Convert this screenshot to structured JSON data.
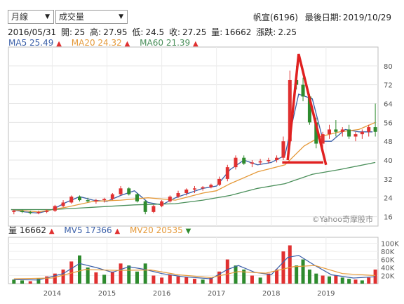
{
  "controls": {
    "period_select": "月線",
    "indicator_select": "成交量"
  },
  "header": {
    "stock": "帆宣(6196)",
    "last_date_label": "最後日期:",
    "last_date": "2019/10/29"
  },
  "ohlc": {
    "date": "2016/05/31",
    "open_label": "開:",
    "open": "25",
    "high_label": "高:",
    "high": "27.95",
    "low_label": "低:",
    "low": "24.5",
    "close_label": "收:",
    "close": "27.25",
    "volume_label": "量:",
    "volume": "16662",
    "change_label": "漲跌:",
    "change": "2.25"
  },
  "ma_legend": [
    {
      "label": "MA5",
      "value": "25.49",
      "color": "#3a5fa8",
      "trend": "up"
    },
    {
      "label": "MA20",
      "value": "24.32",
      "color": "#e59a3a",
      "trend": "up"
    },
    {
      "label": "MA60",
      "value": "21.39",
      "color": "#4a8f5a",
      "trend": "up"
    }
  ],
  "vol_legend": [
    {
      "label": "量",
      "value": "16662",
      "color": "#222222",
      "trend": "up"
    },
    {
      "label": "MV5",
      "value": "17366",
      "color": "#3a5fa8",
      "trend": "up"
    },
    {
      "label": "MV20",
      "value": "20535",
      "color": "#e59a3a",
      "trend": "down"
    }
  ],
  "watermark": "©Yahoo奇摩股市",
  "colors": {
    "up": "#e03030",
    "down": "#2e8b2e",
    "annotation": "#e02020"
  },
  "chart_data": [
    {
      "type": "candlestick",
      "title": "",
      "ylim": [
        12,
        88
      ],
      "y_ticks": [
        16,
        24,
        32,
        40,
        48,
        56,
        64,
        72,
        80
      ],
      "x_ticks": [
        "2014",
        "2015",
        "2016",
        "2017",
        "2018",
        "2019"
      ],
      "x_domain": [
        2013.2,
        2019.95
      ],
      "series": [
        {
          "name": "MA5",
          "color": "#3a5fa8",
          "points": [
            [
              2013.25,
              19
            ],
            [
              2013.5,
              18
            ],
            [
              2013.75,
              17.5
            ],
            [
              2014.0,
              19
            ],
            [
              2014.25,
              22
            ],
            [
              2014.5,
              24.5
            ],
            [
              2014.75,
              23
            ],
            [
              2015.0,
              22.5
            ],
            [
              2015.25,
              25
            ],
            [
              2015.5,
              27
            ],
            [
              2015.75,
              22
            ],
            [
              2016.0,
              21
            ],
            [
              2016.25,
              24
            ],
            [
              2016.5,
              26
            ],
            [
              2016.75,
              28
            ],
            [
              2017.0,
              29
            ],
            [
              2017.25,
              36
            ],
            [
              2017.5,
              40
            ],
            [
              2017.75,
              38
            ],
            [
              2018.0,
              39
            ],
            [
              2018.25,
              42
            ],
            [
              2018.5,
              68
            ],
            [
              2018.75,
              66
            ],
            [
              2018.95,
              48
            ],
            [
              2019.1,
              48
            ],
            [
              2019.35,
              53
            ],
            [
              2019.6,
              52
            ],
            [
              2019.85,
              52
            ]
          ]
        },
        {
          "name": "MA20",
          "color": "#e59a3a",
          "points": [
            [
              2013.25,
              19
            ],
            [
              2013.75,
              18
            ],
            [
              2014.25,
              20
            ],
            [
              2014.75,
              22.5
            ],
            [
              2015.25,
              23
            ],
            [
              2015.75,
              24
            ],
            [
              2016.25,
              23
            ],
            [
              2016.75,
              26
            ],
            [
              2017.0,
              27
            ],
            [
              2017.25,
              30
            ],
            [
              2017.75,
              35
            ],
            [
              2018.25,
              38
            ],
            [
              2018.6,
              46
            ],
            [
              2018.9,
              50
            ],
            [
              2019.25,
              52
            ],
            [
              2019.6,
              53
            ],
            [
              2019.9,
              56
            ]
          ]
        },
        {
          "name": "MA60",
          "color": "#4a8f5a",
          "points": [
            [
              2013.25,
              19
            ],
            [
              2014.0,
              19
            ],
            [
              2014.75,
              20
            ],
            [
              2015.5,
              21
            ],
            [
              2016.25,
              21.5
            ],
            [
              2016.75,
              23
            ],
            [
              2017.25,
              25
            ],
            [
              2017.75,
              28
            ],
            [
              2018.25,
              30
            ],
            [
              2018.75,
              34
            ],
            [
              2019.25,
              36
            ],
            [
              2019.9,
              39
            ]
          ]
        }
      ],
      "candles": [
        [
          2013.3,
          18,
          19,
          17,
          18.5
        ],
        [
          2013.45,
          18.5,
          19,
          17.5,
          18
        ],
        [
          2013.6,
          18,
          18.5,
          17,
          17.5
        ],
        [
          2013.75,
          17.5,
          18.5,
          17,
          18
        ],
        [
          2013.9,
          18,
          19,
          17.5,
          18.5
        ],
        [
          2014.05,
          18.5,
          21,
          18,
          20.5
        ],
        [
          2014.2,
          20.5,
          23,
          20,
          22
        ],
        [
          2014.35,
          22,
          25,
          21.5,
          24.5
        ],
        [
          2014.5,
          24.5,
          25,
          22.5,
          23
        ],
        [
          2014.65,
          23,
          24,
          22,
          22.5
        ],
        [
          2014.8,
          22.5,
          23.5,
          21.5,
          23
        ],
        [
          2014.95,
          23,
          24,
          22,
          23.5
        ],
        [
          2015.1,
          23.5,
          26,
          23,
          25.5
        ],
        [
          2015.25,
          25.5,
          29,
          25,
          28
        ],
        [
          2015.4,
          28,
          28.5,
          25,
          25.5
        ],
        [
          2015.55,
          25.5,
          26,
          22,
          22.5
        ],
        [
          2015.7,
          22.5,
          23,
          17,
          18
        ],
        [
          2015.85,
          18,
          21,
          17.5,
          20.5
        ],
        [
          2016.0,
          20.5,
          23,
          20,
          22.5
        ],
        [
          2016.15,
          22.5,
          25,
          22,
          24.5
        ],
        [
          2016.3,
          24.5,
          27,
          24,
          26
        ],
        [
          2016.45,
          26,
          28,
          25,
          27.5
        ],
        [
          2016.6,
          27.5,
          29,
          26,
          28
        ],
        [
          2016.75,
          28,
          29,
          27,
          28.5
        ],
        [
          2016.9,
          28.5,
          30,
          28,
          29.5
        ],
        [
          2017.05,
          29.5,
          33,
          29,
          32
        ],
        [
          2017.2,
          32,
          38,
          31,
          37
        ],
        [
          2017.35,
          37,
          42,
          36,
          41
        ],
        [
          2017.5,
          41,
          42,
          38,
          38.5
        ],
        [
          2017.65,
          38.5,
          40,
          37,
          39
        ],
        [
          2017.8,
          39,
          40.5,
          38,
          39.5
        ],
        [
          2017.95,
          39.5,
          41,
          38.5,
          40
        ],
        [
          2018.1,
          40,
          42,
          39,
          41
        ],
        [
          2018.22,
          41,
          50,
          40,
          48
        ],
        [
          2018.34,
          48,
          78,
          47,
          74
        ],
        [
          2018.46,
          74,
          80,
          70,
          72
        ],
        [
          2018.58,
          72,
          75,
          65,
          67
        ],
        [
          2018.7,
          67,
          68,
          55,
          56
        ],
        [
          2018.82,
          56,
          58,
          45,
          47
        ],
        [
          2018.94,
          47,
          52,
          44,
          51
        ],
        [
          2019.06,
          51,
          55,
          49,
          53
        ],
        [
          2019.18,
          53,
          57,
          50,
          52
        ],
        [
          2019.3,
          52,
          54,
          50,
          53
        ],
        [
          2019.42,
          53,
          55,
          49,
          50
        ],
        [
          2019.54,
          50,
          52,
          48,
          51
        ],
        [
          2019.66,
          51,
          53,
          49,
          52
        ],
        [
          2019.78,
          52,
          55,
          50,
          54
        ],
        [
          2019.9,
          54,
          64,
          50,
          52
        ]
      ],
      "annotations": [
        {
          "kind": "triangle",
          "color": "#e02020",
          "points": [
            [
              2018.3,
              40
            ],
            [
              2018.5,
              85
            ],
            [
              2019.0,
              38
            ]
          ]
        },
        {
          "kind": "line",
          "color": "#e02020",
          "points": [
            [
              2018.2,
              39
            ],
            [
              2018.95,
              39
            ]
          ]
        }
      ]
    },
    {
      "type": "bar",
      "title": "",
      "ylim": [
        0,
        115
      ],
      "y_ticks": [
        "20K",
        "40K",
        "60K",
        "80K",
        "100K"
      ],
      "y_tick_values": [
        20,
        40,
        60,
        80,
        100
      ],
      "bars": [
        [
          2013.3,
          10,
          "down"
        ],
        [
          2013.45,
          8,
          "down"
        ],
        [
          2013.6,
          6,
          "up"
        ],
        [
          2013.75,
          12,
          "down"
        ],
        [
          2013.9,
          18,
          "up"
        ],
        [
          2014.05,
          25,
          "up"
        ],
        [
          2014.2,
          35,
          "up"
        ],
        [
          2014.35,
          55,
          "up"
        ],
        [
          2014.5,
          70,
          "down"
        ],
        [
          2014.65,
          40,
          "down"
        ],
        [
          2014.8,
          28,
          "up"
        ],
        [
          2014.95,
          22,
          "down"
        ],
        [
          2015.1,
          30,
          "up"
        ],
        [
          2015.25,
          50,
          "up"
        ],
        [
          2015.4,
          45,
          "down"
        ],
        [
          2015.55,
          30,
          "down"
        ],
        [
          2015.7,
          50,
          "down"
        ],
        [
          2015.85,
          20,
          "up"
        ],
        [
          2016.0,
          15,
          "up"
        ],
        [
          2016.15,
          22,
          "up"
        ],
        [
          2016.3,
          18,
          "up"
        ],
        [
          2016.45,
          16,
          "up"
        ],
        [
          2016.6,
          12,
          "up"
        ],
        [
          2016.75,
          10,
          "down"
        ],
        [
          2016.9,
          14,
          "up"
        ],
        [
          2017.05,
          30,
          "up"
        ],
        [
          2017.2,
          60,
          "up"
        ],
        [
          2017.35,
          45,
          "down"
        ],
        [
          2017.5,
          35,
          "down"
        ],
        [
          2017.65,
          20,
          "up"
        ],
        [
          2017.8,
          15,
          "down"
        ],
        [
          2017.95,
          25,
          "up"
        ],
        [
          2018.1,
          35,
          "up"
        ],
        [
          2018.22,
          80,
          "up"
        ],
        [
          2018.34,
          95,
          "up"
        ],
        [
          2018.46,
          45,
          "down"
        ],
        [
          2018.58,
          60,
          "down"
        ],
        [
          2018.7,
          35,
          "down"
        ],
        [
          2018.82,
          25,
          "down"
        ],
        [
          2018.94,
          20,
          "up"
        ],
        [
          2019.06,
          18,
          "down"
        ],
        [
          2019.18,
          20,
          "up"
        ],
        [
          2019.3,
          15,
          "down"
        ],
        [
          2019.42,
          12,
          "down"
        ],
        [
          2019.54,
          10,
          "up"
        ],
        [
          2019.66,
          8,
          "down"
        ],
        [
          2019.78,
          15,
          "up"
        ],
        [
          2019.9,
          35,
          "up"
        ]
      ],
      "series": [
        {
          "name": "MV5",
          "color": "#3a5fa8",
          "points": [
            [
              2013.3,
              10
            ],
            [
              2013.75,
              9
            ],
            [
              2014.2,
              25
            ],
            [
              2014.5,
              50
            ],
            [
              2014.8,
              40
            ],
            [
              2015.1,
              28
            ],
            [
              2015.4,
              42
            ],
            [
              2015.7,
              35
            ],
            [
              2016.0,
              25
            ],
            [
              2016.4,
              17
            ],
            [
              2016.9,
              12
            ],
            [
              2017.2,
              35
            ],
            [
              2017.4,
              45
            ],
            [
              2017.7,
              28
            ],
            [
              2018.0,
              22
            ],
            [
              2018.3,
              65
            ],
            [
              2018.5,
              70
            ],
            [
              2018.8,
              45
            ],
            [
              2019.1,
              22
            ],
            [
              2019.5,
              14
            ],
            [
              2019.9,
              17
            ]
          ]
        },
        {
          "name": "MV20",
          "color": "#e59a3a",
          "points": [
            [
              2013.3,
              12
            ],
            [
              2014.0,
              14
            ],
            [
              2014.6,
              35
            ],
            [
              2015.2,
              33
            ],
            [
              2015.8,
              34
            ],
            [
              2016.3,
              22
            ],
            [
              2016.9,
              15
            ],
            [
              2017.4,
              30
            ],
            [
              2017.9,
              26
            ],
            [
              2018.4,
              42
            ],
            [
              2018.8,
              45
            ],
            [
              2019.3,
              25
            ],
            [
              2019.9,
              20
            ]
          ]
        }
      ]
    }
  ]
}
